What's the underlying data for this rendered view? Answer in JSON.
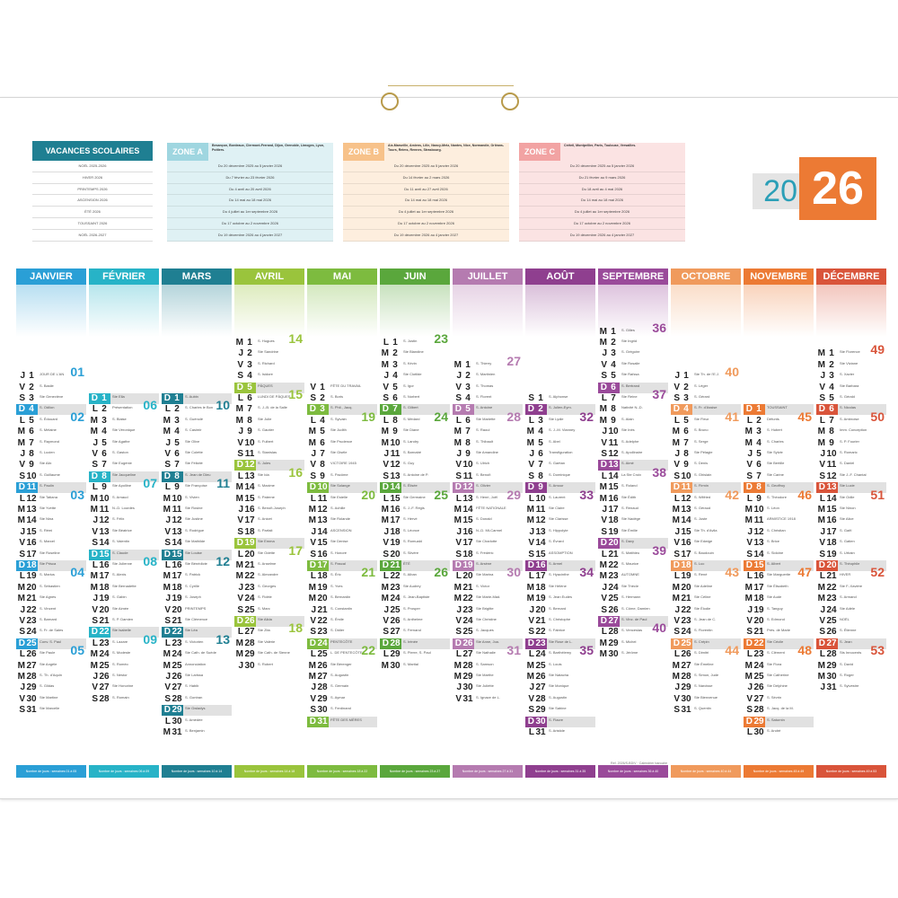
{
  "year": {
    "first": "20",
    "second": "26"
  },
  "vacances": {
    "title": "VACANCES SCOLAIRES",
    "rows": [
      "NOËL 2025-2026",
      "HIVER 2026",
      "PRINTEMPS 2026",
      "ASCENSION 2026",
      "ÉTÉ 2026",
      "TOUSSAINT 2026",
      "NOËL 2026-2027"
    ]
  },
  "zones": [
    {
      "label": "ZONE A",
      "color": "#9fd6e0",
      "rowbg": "#dff1f4",
      "cities": "Besançon, Bordeaux, Clermont-Ferrand, Dijon, Grenoble, Limoges, Lyon, Poitiers.",
      "rows": [
        "Du 20 décembre 2025 au 5 janvier 2026",
        "Du 7 février au 23 février 2026",
        "Du 4 avril au 20 avril 2026",
        "Du 14 mai au 18 mai 2026",
        "Du 4 juillet au 1er septembre 2026",
        "Du 17 octobre au 2 novembre 2026",
        "Du 19 décembre 2026 au 4 janvier 2027"
      ]
    },
    {
      "label": "ZONE B",
      "color": "#f7c28a",
      "rowbg": "#fdeede",
      "cities": "Aix-Marseille, Amiens, Lille, Nancy-Metz, Nantes, Nice, Normandie, Orléans-Tours, Reims, Rennes, Strasbourg.",
      "rows": [
        "Du 20 décembre 2025 au 5 janvier 2026",
        "Du 14 février au 2 mars 2026",
        "Du 11 avril au 27 avril 2026",
        "Du 14 mai au 18 mai 2026",
        "Du 4 juillet au 1er septembre 2026",
        "Du 17 octobre au 2 novembre 2026",
        "Du 19 décembre 2026 au 4 janvier 2027"
      ]
    },
    {
      "label": "ZONE C",
      "color": "#f2a3a3",
      "rowbg": "#fbe3e3",
      "cities": "Créteil, Montpellier, Paris, Toulouse, Versailles.",
      "rows": [
        "Du 20 décembre 2025 au 5 janvier 2026",
        "Du 21 février au 9 mars 2026",
        "Du 18 avril au 4 mai 2026",
        "Du 14 mai au 18 mai 2026",
        "Du 4 juillet au 1er septembre 2026",
        "Du 17 octobre au 2 novembre 2026",
        "Du 19 décembre 2026 au 4 janvier 2027"
      ]
    }
  ],
  "months": [
    {
      "name": "JANVIER",
      "color": "#2a9fd6",
      "days": 31,
      "first": 3,
      "weeks": [
        [
          "1",
          "01"
        ],
        [
          "5",
          "02"
        ],
        [
          "12",
          "03"
        ],
        [
          "19",
          "04"
        ],
        [
          "26",
          "05"
        ]
      ],
      "saints": [
        "JOUR DE L'AN",
        "S. Basile",
        "Ste Geneviève",
        "S. Odilon",
        "S. Édouard",
        "S. Mélaine",
        "S. Raymond",
        "S. Lucien",
        "Ste Alix",
        "S. Guillaume",
        "S. Paulin",
        "Ste Tatiana",
        "Ste Yvette",
        "Ste Nina",
        "S. Rémi",
        "S. Marcel",
        "Ste Roseline",
        "Ste Prisca",
        "S. Marius",
        "S. Sébastien",
        "Ste Agnès",
        "S. Vincent",
        "S. Barnard",
        "S. Fr. de Sales",
        "Conv. S. Paul",
        "Ste Paule",
        "Ste Angèle",
        "S. Th. d'Aquin",
        "S. Gildas",
        "Ste Martine",
        "Ste Marcelle"
      ],
      "footer": "Nombre de jours : semaines 01 à 05"
    },
    {
      "name": "FÉVRIER",
      "color": "#27b3c7",
      "days": 28,
      "first": 6,
      "weeks": [
        [
          "2",
          "06"
        ],
        [
          "9",
          "07"
        ],
        [
          "16",
          "08"
        ],
        [
          "23",
          "09"
        ]
      ],
      "saints": [
        "Ste Ella",
        "Présentation",
        "S. Blaise",
        "Ste Véronique",
        "Ste Agathe",
        "S. Gaston",
        "Ste Eugénie",
        "Ste Jacqueline",
        "Ste Apolline",
        "S. Arnaud",
        "N.-D. Lourdes",
        "S. Félix",
        "Ste Béatrice",
        "S. Valentin",
        "S. Claude",
        "Ste Julienne",
        "S. Alexis",
        "Ste Bernadette",
        "S. Gabin",
        "Ste Aimée",
        "S. P. Damien",
        "Ste Isabelle",
        "S. Lazare",
        "S. Modeste",
        "S. Roméo",
        "S. Nestor",
        "Ste Honorine",
        "S. Romain"
      ],
      "footer": "Nombre de jours : semaines 06 à 09"
    },
    {
      "name": "MARS",
      "color": "#1f7f92",
      "days": 31,
      "first": 6,
      "weeks": [
        [
          "2",
          "10"
        ],
        [
          "9",
          "11"
        ],
        [
          "16",
          "12"
        ],
        [
          "23",
          "13"
        ]
      ],
      "saints": [
        "S. Aubin",
        "S. Charles le Bon",
        "S. Guénolé",
        "S. Casimir",
        "Ste Olive",
        "Ste Colette",
        "Ste Félicité",
        "S. Jean de Dieu",
        "Ste Françoise",
        "S. Vivien",
        "Ste Rosine",
        "Ste Justine",
        "S. Rodrigue",
        "Ste Mathilde",
        "Ste Louise",
        "Ste Bénédicte",
        "S. Patrick",
        "S. Cyrille",
        "S. Joseph",
        "PRINTEMPS",
        "Ste Clémence",
        "Ste Léa",
        "S. Victorien",
        "Ste Cath. de Suède",
        "Annonciation",
        "Ste Larissa",
        "S. Habib",
        "S. Gontran",
        "Ste Gwladys",
        "S. Amédée",
        "S. Benjamin"
      ],
      "footer": "Nombre de jours : semaines 10 à 14"
    },
    {
      "name": "AVRIL",
      "color": "#9ac43c",
      "days": 30,
      "first": 2,
      "weeks": [
        [
          "1",
          "14"
        ],
        [
          "6",
          "15"
        ],
        [
          "13",
          "16"
        ],
        [
          "20",
          "17"
        ],
        [
          "27",
          "18"
        ]
      ],
      "saints": [
        "S. Hugues",
        "Ste Sandrine",
        "S. Richard",
        "S. Isidore",
        "PÂQUES",
        "LUNDI DE PÂQUES",
        "S. J.-B. de la Salle",
        "Ste Julie",
        "S. Gautier",
        "S. Fulbert",
        "S. Stanislas",
        "S. Jules",
        "Ste Ida",
        "S. Maxime",
        "S. Paterne",
        "S. Benoît-Joseph",
        "S. Anicet",
        "S. Parfait",
        "Ste Emma",
        "Ste Odette",
        "S. Anselme",
        "S. Alexandre",
        "S. Georges",
        "S. Fidèle",
        "S. Marc",
        "Ste Alida",
        "Ste Zita",
        "Ste Valérie",
        "Ste Cath. de Sienne",
        "S. Robert"
      ],
      "footer": "Nombre de jours : semaines 14 à 18"
    },
    {
      "name": "MAI",
      "color": "#7dbb3f",
      "days": 31,
      "first": 4,
      "weeks": [
        [
          "4",
          "19"
        ],
        [
          "11",
          "20"
        ],
        [
          "18",
          "21"
        ],
        [
          "25",
          "22"
        ]
      ],
      "saints": [
        "FÊTE DU TRAVAIL",
        "S. Boris",
        "S. Phil., Jacq.",
        "S. Sylvain",
        "Ste Judith",
        "Ste Prudence",
        "Ste Gisèle",
        "VICTOIRE 1945",
        "S. Pacôme",
        "Ste Solange",
        "Ste Estelle",
        "S. Achille",
        "Ste Rolande",
        "ASCENSION",
        "Ste Denise",
        "S. Honoré",
        "S. Pascal",
        "S. Éric",
        "S. Yves",
        "S. Bernardin",
        "S. Constantin",
        "S. Émile",
        "S. Didier",
        "PENTECÔTE",
        "L. DE PENTECÔTE",
        "Ste Bérenger",
        "S. Augustin",
        "S. Germain",
        "S. Aymar",
        "S. Ferdinand",
        "FÊTE DES MÈRES"
      ],
      "footer": "Nombre de jours : semaines 18 à 22"
    },
    {
      "name": "JUIN",
      "color": "#5aa73c",
      "days": 30,
      "first": 0,
      "weeks": [
        [
          "1",
          "23"
        ],
        [
          "8",
          "24"
        ],
        [
          "15",
          "25"
        ],
        [
          "22",
          "26"
        ]
      ],
      "saints": [
        "S. Justin",
        "Ste Blandine",
        "S. Kévin",
        "Ste Clotilde",
        "S. Igor",
        "S. Norbert",
        "S. Gilbert",
        "S. Médard",
        "Ste Diane",
        "S. Landry",
        "S. Barnabé",
        "S. Guy",
        "S. Antoine de P.",
        "S. Élisée",
        "Ste Germaine",
        "S. J.-F. Régis",
        "S. Hervé",
        "S. Léonce",
        "S. Romuald",
        "S. Silvère",
        "ÉTÉ",
        "S. Alban",
        "Ste Audrey",
        "S. Jean-Baptiste",
        "S. Prosper",
        "S. Anthelme",
        "S. Fernand",
        "S. Irénée",
        "S. Pierre, S. Paul",
        "S. Martial"
      ],
      "footer": "Nombre de jours : semaines 23 à 27"
    },
    {
      "name": "JUILLET",
      "color": "#b57bb0",
      "days": 31,
      "first": 2,
      "weeks": [
        [
          "1",
          "27"
        ],
        [
          "6",
          "28"
        ],
        [
          "13",
          "29"
        ],
        [
          "20",
          "30"
        ],
        [
          "27",
          "31"
        ]
      ],
      "saints": [
        "S. Thierry",
        "S. Martinien",
        "S. Thomas",
        "S. Florent",
        "S. Antoine",
        "Ste Mariette",
        "S. Raoul",
        "S. Thibault",
        "Ste Amandine",
        "S. Ulrich",
        "S. Benoît",
        "S. Olivier",
        "S. Henri, Joël",
        "FÊTE NATIONALE",
        "S. Donald",
        "N.-D. Mt-Carmel",
        "Ste Charlotte",
        "S. Frédéric",
        "S. Arsène",
        "Ste Marina",
        "S. Victor",
        "Ste Marie-Mad.",
        "Ste Brigitte",
        "Ste Christine",
        "S. Jacques",
        "Ste Anne, Joa.",
        "Ste Nathalie",
        "S. Samson",
        "Ste Marthe",
        "Ste Juliette",
        "S. Ignace de L."
      ],
      "footer": "Nombre de jours : semaines 27 à 31"
    },
    {
      "name": "AOÛT",
      "color": "#8f3f8f",
      "days": 31,
      "first": 5,
      "weeks": [
        [
          "3",
          "32"
        ],
        [
          "10",
          "33"
        ],
        [
          "17",
          "34"
        ],
        [
          "24",
          "35"
        ]
      ],
      "saints": [
        "S. Alphonse",
        "S. Julien-Eym.",
        "Ste Lydie",
        "S. J.-M. Vianney",
        "S. Abel",
        "Transfiguration",
        "S. Gaétan",
        "S. Dominique",
        "S. Amour",
        "S. Laurent",
        "Ste Claire",
        "Ste Clarisse",
        "S. Hippolyte",
        "S. Évrard",
        "ASSOMPTION",
        "S. Armel",
        "S. Hyacinthe",
        "Ste Hélène",
        "S. Jean Eudes",
        "S. Bernard",
        "S. Christophe",
        "S. Fabrice",
        "Ste Rose de L.",
        "S. Barthélemy",
        "S. Louis",
        "Ste Natacha",
        "Ste Monique",
        "S. Augustin",
        "Ste Sabine",
        "S. Fiacre",
        "S. Aristide"
      ],
      "footer": "Nombre de jours : semaines 31 à 35"
    },
    {
      "name": "SEPTEMBRE",
      "color": "#9a4a9a",
      "days": 30,
      "first": 1,
      "weeks": [
        [
          "1",
          "36"
        ],
        [
          "7",
          "37"
        ],
        [
          "14",
          "38"
        ],
        [
          "21",
          "39"
        ],
        [
          "28",
          "40"
        ]
      ],
      "saints": [
        "S. Gilles",
        "Ste Ingrid",
        "S. Grégoire",
        "Ste Rosalie",
        "Ste Raïssa",
        "S. Bertrand",
        "Ste Reine",
        "Nativité N.-D.",
        "S. Alain",
        "Ste Inès",
        "S. Adelphe",
        "S. Apollinaire",
        "S. Aimé",
        "La Ste Croix",
        "S. Roland",
        "Ste Édith",
        "S. Renaud",
        "Ste Nadège",
        "Ste Émilie",
        "S. Davy",
        "S. Matthieu",
        "S. Maurice",
        "AUTOMNE",
        "Ste Thècle",
        "S. Hermann",
        "S. Côme, Damien",
        "S. Vinc. de Paul",
        "S. Venceslas",
        "S. Michel",
        "S. Jérôme"
      ],
      "footer": "Nombre de jours : semaines 36 à 40"
    },
    {
      "name": "OCTOBRE",
      "color": "#f09a5c",
      "days": 31,
      "first": 3,
      "weeks": [
        [
          "1",
          "40"
        ],
        [
          "5",
          "41"
        ],
        [
          "12",
          "42"
        ],
        [
          "19",
          "43"
        ],
        [
          "26",
          "44"
        ]
      ],
      "saints": [
        "Ste Th. de l'E.J.",
        "S. Léger",
        "S. Gérard",
        "S. Fr. d'Assise",
        "Ste Fleur",
        "S. Bruno",
        "S. Serge",
        "Ste Pélagie",
        "S. Denis",
        "S. Ghislain",
        "S. Firmin",
        "S. Wilfried",
        "S. Géraud",
        "S. Juste",
        "Ste Th. d'Avila",
        "Ste Edwige",
        "S. Baudouin",
        "S. Luc",
        "S. René",
        "Ste Adeline",
        "Ste Céline",
        "Ste Élodie",
        "S. Jean de C.",
        "S. Florentin",
        "S. Crépin",
        "S. Dimitri",
        "Ste Émeline",
        "S. Simon, Jude",
        "S. Narcisse",
        "Ste Bienvenue",
        "S. Quentin"
      ],
      "footer": "Nombre de jours : semaines 40 à 44"
    },
    {
      "name": "NOVEMBRE",
      "color": "#ec7a34",
      "days": 30,
      "first": 6,
      "weeks": [
        [
          "2",
          "45"
        ],
        [
          "9",
          "46"
        ],
        [
          "16",
          "47"
        ],
        [
          "23",
          "48"
        ]
      ],
      "saints": [
        "TOUSSAINT",
        "Défunts",
        "S. Hubert",
        "S. Charles",
        "Ste Sylvie",
        "Ste Bertille",
        "Ste Carine",
        "S. Geoffroy",
        "S. Théodore",
        "S. Léon",
        "ARMISTICE 1918",
        "S. Christian",
        "S. Brice",
        "S. Sidoine",
        "S. Albert",
        "Ste Marguerite",
        "Ste Élisabeth",
        "Ste Aude",
        "S. Tanguy",
        "S. Edmond",
        "Prés. de Marie",
        "Ste Cécile",
        "S. Clément",
        "Ste Flora",
        "Ste Catherine",
        "Ste Delphine",
        "S. Sévrin",
        "S. Jacq. de la M.",
        "S. Saturnin",
        "S. André"
      ],
      "footer": "Nombre de jours : semaines 45 à 49"
    },
    {
      "name": "DÉCEMBRE",
      "color": "#d9543a",
      "days": 31,
      "first": 1,
      "weeks": [
        [
          "1",
          "49"
        ],
        [
          "7",
          "50"
        ],
        [
          "14",
          "51"
        ],
        [
          "21",
          "52"
        ],
        [
          "28",
          "53"
        ]
      ],
      "saints": [
        "Ste Florence",
        "Ste Viviane",
        "S. Xavier",
        "Ste Barbara",
        "S. Gérald",
        "S. Nicolas",
        "S. Ambroise",
        "Imm. Conception",
        "S. P. Fourier",
        "S. Romaric",
        "S. Daniel",
        "Ste J.-F. Chantal",
        "Ste Lucie",
        "Ste Odile",
        "Ste Ninon",
        "Ste Alice",
        "S. Gaël",
        "S. Gatien",
        "S. Urbain",
        "S. Théophile",
        "HIVER",
        "Ste F.-Xavière",
        "S. Armand",
        "Ste Adèle",
        "NOËL",
        "S. Étienne",
        "S. Jean",
        "Sts Innocents",
        "S. David",
        "S. Roger",
        "S. Sylvestre"
      ],
      "footer": "Nombre de jours : semaines 49 à 53"
    }
  ],
  "credit": "Ref. 2026/S-BD/V · Calendrier bancaire",
  "weekday_letters": [
    "L",
    "M",
    "M",
    "J",
    "V",
    "S",
    "D"
  ]
}
